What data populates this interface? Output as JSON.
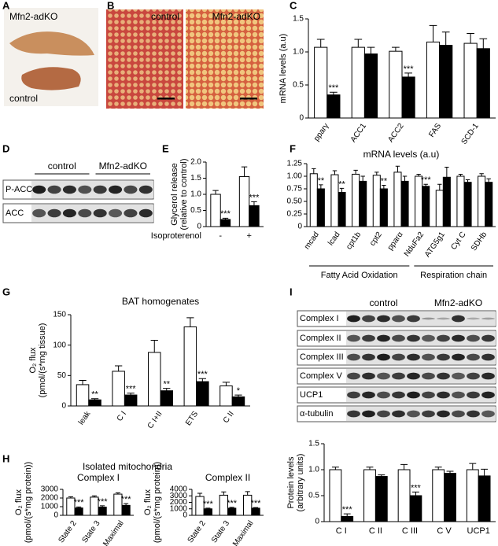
{
  "figure": {
    "panel_labels": [
      "A",
      "B",
      "C",
      "D",
      "E",
      "F",
      "G",
      "H",
      "I"
    ],
    "photo_a": [
      "Mfn2-adKO",
      "control"
    ],
    "photo_b": [
      "control",
      "Mfn2-adKO"
    ],
    "blot_d": {
      "groups": [
        "control",
        "Mfn2-adKO"
      ],
      "rows": [
        "P-ACC",
        "ACC"
      ]
    },
    "blot_i": {
      "groups": [
        "control",
        "Mfn2-adKO"
      ],
      "rows": [
        "Complex I",
        "Complex II",
        "Complex III",
        "Complex V",
        "UCP1",
        "α-tubulin"
      ]
    },
    "h_title": "Isolated mitochondria"
  },
  "chart_data": [
    {
      "type": "bar",
      "ylabel": [
        "mRNA levels  (a.u)"
      ],
      "categories": [
        "pparγ",
        "ACC1",
        "ACC2",
        "FAS",
        "SCD-1"
      ],
      "ylim": [
        0,
        1.5
      ],
      "yticks": [
        0,
        0.5,
        {
          "value": 1,
          "label": "1.0"
        },
        1.5
      ],
      "series": [
        {
          "color": "#ffffff",
          "values": [
            1.07,
            1.07,
            1.01,
            1.15,
            1.13
          ],
          "errors": [
            0.12,
            0.12,
            0.06,
            0.25,
            0.15
          ],
          "significance": [
            null,
            null,
            null,
            null,
            null
          ]
        },
        {
          "color": "#000000",
          "values": [
            0.35,
            0.97,
            0.62,
            1.1,
            1.05
          ],
          "errors": [
            0.04,
            0.1,
            0.06,
            0.2,
            0.15
          ],
          "significance": [
            "***",
            null,
            "***",
            null,
            null
          ]
        }
      ]
    },
    {
      "type": "bar",
      "ylabel": [
        "Glycerol release",
        "(relative to control)"
      ],
      "xlabel": "Isoproterenol",
      "categories": [
        "-",
        "+"
      ],
      "ylim": [
        0,
        2
      ],
      "yticks": [
        0,
        0.5,
        {
          "value": 1,
          "label": "1.0"
        },
        1.5,
        {
          "value": 2,
          "label": "2.0"
        }
      ],
      "series": [
        {
          "color": "#ffffff",
          "values": [
            1.0,
            1.55
          ],
          "errors": [
            0.12,
            0.3
          ],
          "significance": [
            null,
            null
          ]
        },
        {
          "color": "#000000",
          "values": [
            0.22,
            0.65
          ],
          "errors": [
            0.04,
            0.12
          ],
          "significance": [
            "***",
            "***"
          ]
        }
      ]
    },
    {
      "type": "bar",
      "title": "mRNA levels  (a.u)",
      "categories": [
        "mcad",
        "lcad",
        "cpt1b",
        "cpt2",
        "pparα",
        "NduFa2",
        "ATG5g1",
        "Cyt C",
        "SDHb"
      ],
      "groups": [
        {
          "label": "Fatty Acid Oxidation",
          "count": 5
        },
        {
          "label": "Respiration chain",
          "count": 4
        }
      ],
      "ylim": [
        0,
        1.25
      ],
      "yticks": [
        0,
        0.25,
        {
          "value": 0.5,
          "label": "0.50"
        },
        0.75,
        {
          "value": 1,
          "label": "1.00"
        },
        1.25
      ],
      "series": [
        {
          "color": "#ffffff",
          "values": [
            1.05,
            1.03,
            1.04,
            1.02,
            1.08,
            1.0,
            0.72,
            1.0,
            1.0
          ],
          "errors": [
            0.1,
            0.08,
            0.08,
            0.06,
            0.12,
            0.04,
            0.12,
            0.04,
            0.05
          ],
          "significance": [
            null,
            null,
            null,
            null,
            null,
            null,
            null,
            null,
            null
          ]
        },
        {
          "color": "#000000",
          "values": [
            0.75,
            0.68,
            0.9,
            0.75,
            0.9,
            0.8,
            0.98,
            0.88,
            0.88
          ],
          "errors": [
            0.08,
            0.08,
            0.1,
            0.07,
            0.1,
            0.04,
            0.2,
            0.05,
            0.07
          ],
          "significance": [
            "**",
            "**",
            null,
            "**",
            null,
            "***",
            null,
            null,
            null
          ]
        }
      ]
    },
    {
      "type": "bar",
      "title": "BAT homogenates",
      "ylabel": [
        "O₂ flux",
        "(pmol/(s*mg tissue)"
      ],
      "categories": [
        "leak",
        "C I",
        "C I+II",
        "ETS",
        "C II"
      ],
      "ylim": [
        0,
        150
      ],
      "yticks": [
        0,
        50,
        100,
        150
      ],
      "series": [
        {
          "color": "#ffffff",
          "values": [
            35,
            57,
            88,
            130,
            33
          ],
          "errors": [
            7,
            9,
            20,
            15,
            6
          ],
          "significance": [
            null,
            null,
            null,
            null,
            null
          ]
        },
        {
          "color": "#000000",
          "values": [
            10,
            18,
            25,
            40,
            15
          ],
          "errors": [
            2,
            3,
            4,
            5,
            3
          ],
          "significance": [
            "**",
            "***",
            "**",
            "***",
            "*"
          ]
        }
      ]
    },
    {
      "type": "bar",
      "title": "Complex I",
      "ylabel": [
        "O₂ flux",
        "(pmol/(s*mg protein))"
      ],
      "categories": [
        "State 2",
        "State 3",
        "Maximal"
      ],
      "ylim": [
        0,
        3000
      ],
      "yticks": [
        0,
        1000,
        2000,
        3000
      ],
      "series": [
        {
          "color": "#ffffff",
          "values": [
            2000,
            2100,
            2450
          ],
          "errors": [
            150,
            150,
            150
          ],
          "significance": [
            null,
            null,
            null
          ]
        },
        {
          "color": "#000000",
          "values": [
            850,
            950,
            1150
          ],
          "errors": [
            120,
            150,
            200
          ],
          "significance": [
            "***",
            "***",
            "***"
          ]
        }
      ]
    },
    {
      "type": "bar",
      "title": "Complex II",
      "ylabel": [
        "O₂ flux",
        "(pmol/(s*mg protein))"
      ],
      "categories": [
        "State 2",
        "State 3",
        "Maximal"
      ],
      "ylim": [
        0,
        4000
      ],
      "yticks": [
        0,
        1000,
        2000,
        3000,
        4000
      ],
      "series": [
        {
          "color": "#ffffff",
          "values": [
            2900,
            3100,
            3100
          ],
          "errors": [
            500,
            500,
            550
          ],
          "significance": [
            null,
            null,
            null
          ]
        },
        {
          "color": "#000000",
          "values": [
            1000,
            1100,
            1100
          ],
          "errors": [
            100,
            120,
            100
          ],
          "significance": [
            "***",
            "***",
            "***"
          ]
        }
      ]
    },
    {
      "type": "bar",
      "ylabel": [
        "Protein levels",
        "(arbitrary units)"
      ],
      "categories": [
        "C I",
        "C II",
        "C III",
        "C V",
        "UCP1"
      ],
      "ylim": [
        0,
        1.5
      ],
      "yticks": [
        0,
        0.5,
        {
          "value": 1,
          "label": "1.0"
        },
        1.5
      ],
      "series": [
        {
          "color": "#ffffff",
          "values": [
            1.0,
            1.0,
            1.0,
            1.0,
            1.0
          ],
          "errors": [
            0.05,
            0.05,
            0.1,
            0.05,
            0.12
          ],
          "significance": [
            null,
            null,
            null,
            null,
            null
          ]
        },
        {
          "color": "#000000",
          "values": [
            0.1,
            0.87,
            0.5,
            0.93,
            0.88
          ],
          "errors": [
            0.05,
            0.03,
            0.07,
            0.04,
            0.13
          ],
          "significance": [
            "***",
            null,
            "***",
            null,
            null
          ]
        }
      ]
    }
  ]
}
